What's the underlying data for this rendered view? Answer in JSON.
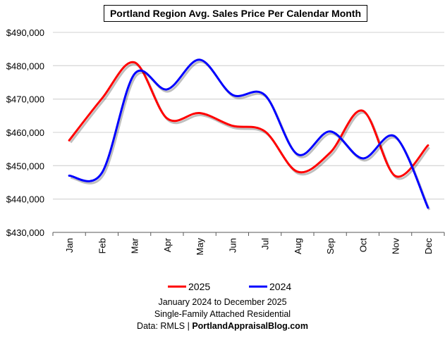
{
  "chart_data": {
    "type": "line",
    "title": "Portland Region Avg. Sales Price Per Calendar Month",
    "categories": [
      "Jan",
      "Feb",
      "Mar",
      "Apr",
      "May",
      "Jun",
      "Jul",
      "Aug",
      "Sep",
      "Oct",
      "Nov",
      "Dec"
    ],
    "series": [
      {
        "name": "2025",
        "color": "#ff0000",
        "values": [
          457600,
          470100,
          481000,
          464200,
          465800,
          462000,
          460300,
          448200,
          453900,
          466500,
          446900,
          456100
        ]
      },
      {
        "name": "2024",
        "color": "#0000ff",
        "values": [
          447000,
          447800,
          477500,
          472900,
          481800,
          471300,
          471200,
          453400,
          460300,
          452200,
          458700,
          437400
        ]
      }
    ],
    "ylim": [
      430000,
      490000
    ],
    "yticks": [
      "$430,000",
      "$440,000",
      "$450,000",
      "$460,000",
      "$470,000",
      "$480,000",
      "$490,000"
    ],
    "grid": true,
    "smoothed": true,
    "legend": "bottom",
    "xlabel": "",
    "ylabel": ""
  },
  "captions": [
    "January 2024 to December 2025",
    "Single-Family Attached Residential"
  ],
  "source_prefix": "Data: RMLS | ",
  "source_site": "PortlandAppraisalBlog.com"
}
